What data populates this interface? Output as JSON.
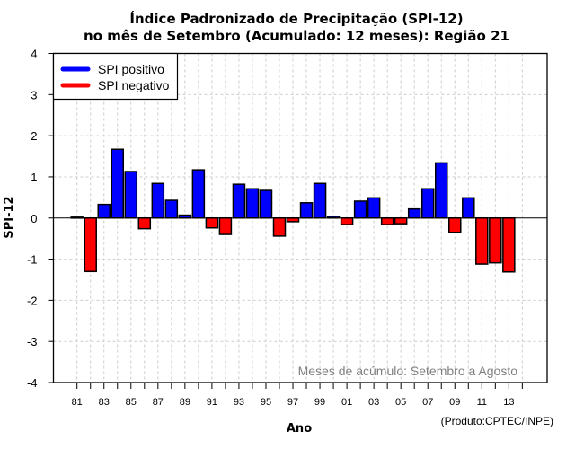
{
  "chart_data": {
    "type": "bar",
    "title": "Índice Padronizado de Precipitação (SPI-12)",
    "subtitle": "no mês de Setembro (Acumulado: 12 meses): Região 21",
    "xlabel": "Ano",
    "ylabel": "SPI-12",
    "ylim": [
      -4,
      4
    ],
    "yticks": [
      4,
      3,
      2,
      1,
      0,
      -1,
      -2,
      -3,
      -4
    ],
    "xlim": [
      1980,
      2015
    ],
    "xtick_labels": [
      "81",
      "83",
      "85",
      "87",
      "89",
      "91",
      "93",
      "95",
      "97",
      "99",
      "01",
      "03",
      "05",
      "07",
      "09",
      "11",
      "13"
    ],
    "xtick_years": [
      1981,
      1983,
      1985,
      1987,
      1989,
      1991,
      1993,
      1995,
      1997,
      1999,
      2001,
      2003,
      2005,
      2007,
      2009,
      2011,
      2013
    ],
    "minor_tick_years": [
      1981,
      1982,
      1983,
      1984,
      1985,
      1986,
      1987,
      1988,
      1989,
      1990,
      1991,
      1992,
      1993,
      1994,
      1995,
      1996,
      1997,
      1998,
      1999,
      2000,
      2001,
      2002,
      2003,
      2004,
      2005,
      2006,
      2007,
      2008,
      2009,
      2010,
      2011,
      2012,
      2013,
      2014
    ],
    "grid": true,
    "categories": [
      1981,
      1982,
      1983,
      1984,
      1985,
      1986,
      1987,
      1988,
      1989,
      1990,
      1991,
      1992,
      1993,
      1994,
      1995,
      1996,
      1997,
      1998,
      1999,
      2000,
      2001,
      2002,
      2003,
      2004,
      2005,
      2006,
      2007,
      2008,
      2009,
      2010,
      2011,
      2012,
      2013
    ],
    "values": [
      0.02,
      -1.3,
      0.33,
      1.67,
      1.13,
      -0.26,
      0.84,
      0.43,
      0.07,
      1.17,
      -0.24,
      -0.4,
      0.82,
      0.71,
      0.67,
      -0.44,
      -0.09,
      0.37,
      0.84,
      0.04,
      -0.16,
      0.41,
      0.49,
      -0.16,
      -0.14,
      0.22,
      0.71,
      1.34,
      -0.35,
      0.49,
      -1.12,
      -1.09,
      -1.31
    ],
    "legend": {
      "position": "top-left",
      "entries": [
        {
          "label": "SPI positivo",
          "color": "#0000ff"
        },
        {
          "label": "SPI negativo",
          "color": "#ff0000"
        }
      ]
    },
    "annotation": "Meses de acúmulo: Setembro a Agosto",
    "credit": "(Produto:CPTEC/INPE)"
  },
  "colors": {
    "positive": "#0000ff",
    "negative": "#ff0000",
    "grid": "#cccccc",
    "annotation": "#808080"
  }
}
